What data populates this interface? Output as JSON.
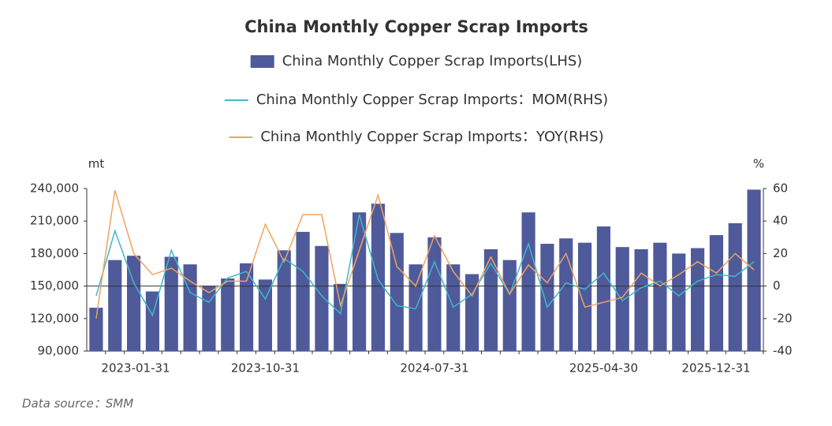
{
  "chart_data": {
    "type": "bar_line",
    "title": "China Monthly Copper Scrap Imports",
    "y_unit": "mt",
    "y2_unit": "%",
    "source": "Data source：SMM",
    "categories": [
      "2023-01-31",
      null,
      null,
      null,
      null,
      null,
      null,
      null,
      null,
      "2023-10-31",
      null,
      null,
      null,
      null,
      null,
      null,
      null,
      null,
      "2024-07-31",
      null,
      null,
      null,
      null,
      null,
      null,
      null,
      null,
      "2025-04-30",
      null,
      null,
      null,
      null,
      null,
      null,
      null,
      "2025-12-31"
    ],
    "series": [
      {
        "name": "China Monthly Copper Scrap Imports(LHS)",
        "type": "bar",
        "color": "#4f5a9b",
        "axis": "y",
        "values": [
          130000,
          174000,
          178000,
          145000,
          177000,
          170000,
          150000,
          157000,
          171000,
          156000,
          183000,
          200000,
          187000,
          152000,
          218000,
          226000,
          199000,
          170000,
          195000,
          170000,
          161000,
          184000,
          174000,
          218000,
          189000,
          194000,
          190000,
          205000,
          186000,
          184000,
          190000,
          180000,
          185000,
          197000,
          208000,
          239000
        ]
      },
      {
        "name": "China Monthly Copper Scrap Imports：MOM(RHS)",
        "type": "line",
        "color": "#3fb8c9",
        "axis": "y2",
        "values": [
          -6,
          34,
          2,
          -18,
          22,
          -4,
          -10,
          5,
          9,
          -8,
          17,
          9,
          -6,
          -17,
          44,
          4,
          -12,
          -14,
          15,
          -13,
          -5,
          14,
          -5,
          26,
          -13,
          2,
          -2,
          8,
          -9,
          -1,
          3,
          -6,
          3,
          7,
          6,
          15
        ]
      },
      {
        "name": "China Monthly Copper Scrap Imports：YOY(RHS)",
        "type": "line",
        "color": "#f0a35e",
        "axis": "y2",
        "values": [
          -20,
          59,
          20,
          7,
          11,
          3,
          -4,
          3,
          3,
          38,
          15,
          44,
          44,
          -12,
          22,
          56,
          12,
          0,
          31,
          9,
          -6,
          18,
          -5,
          13,
          2,
          20,
          -13,
          -10,
          -7,
          8,
          0,
          7,
          15,
          8,
          20,
          10
        ]
      }
    ],
    "ylim": [
      90000,
      240000
    ],
    "yticks": [
      {
        "value": 90000,
        "label": "90,000"
      },
      {
        "value": 120000,
        "label": "120,000"
      },
      {
        "value": 150000,
        "label": "150,000"
      },
      {
        "value": 180000,
        "label": "180,000"
      },
      {
        "value": 210000,
        "label": "210,000"
      },
      {
        "value": 240000,
        "label": "240,000"
      }
    ],
    "y2lim": [
      -40,
      60
    ],
    "y2ticks": [
      -40,
      -20,
      0,
      20,
      40,
      60
    ]
  }
}
